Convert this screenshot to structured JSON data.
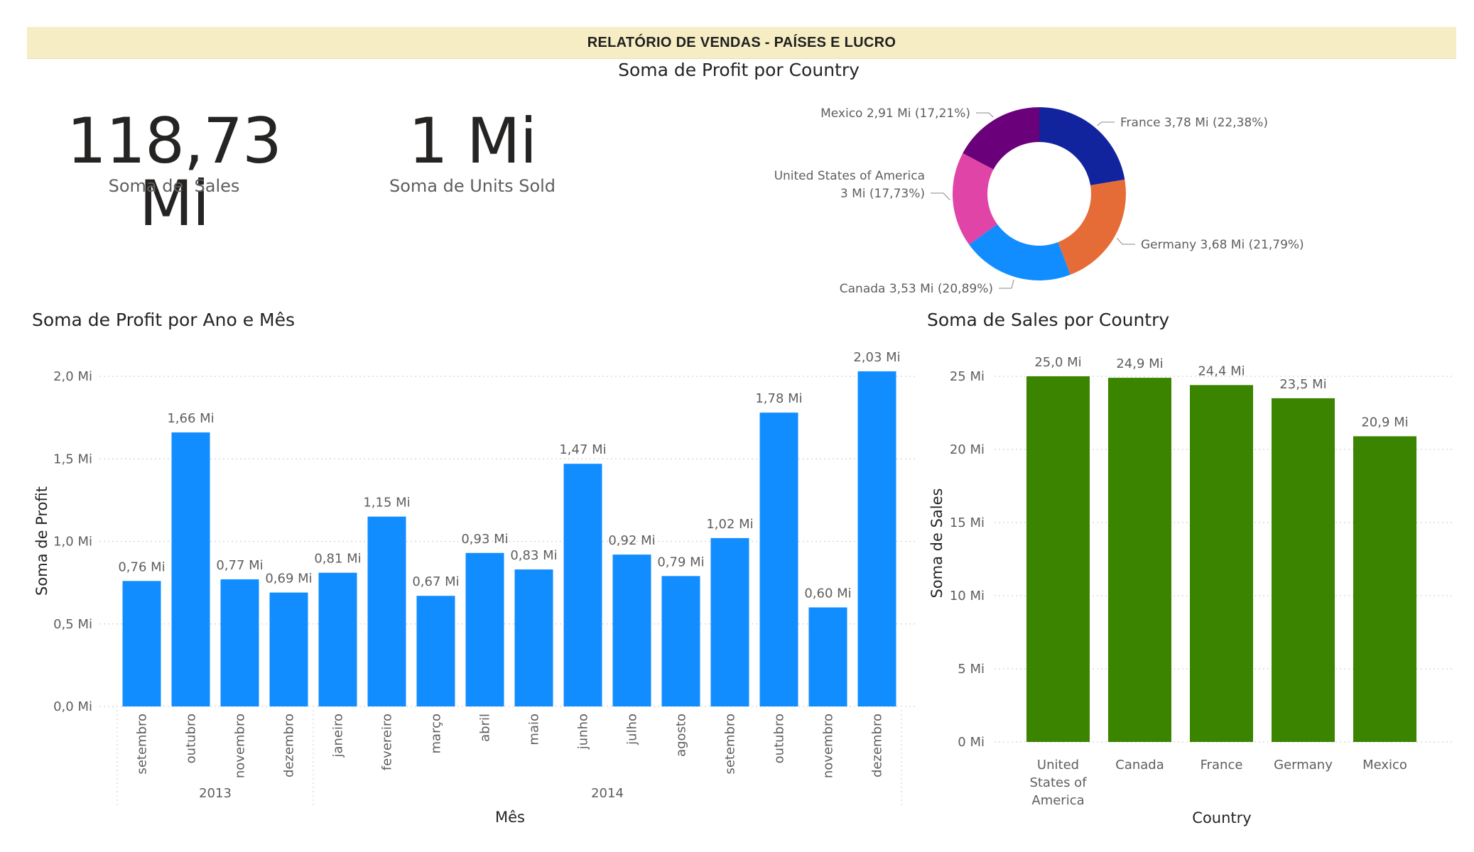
{
  "header": {
    "title": "RELATÓRIO DE VENDAS - PAÍSES E LUCRO"
  },
  "kpis": {
    "sales": {
      "value": "118,73 Mi",
      "label": "Soma de  Sales"
    },
    "units": {
      "value": "1 Mi",
      "label": "Soma de Units Sold"
    }
  },
  "colors": {
    "profit_bar": "#118dff",
    "sales_bar": "#3a8400",
    "France": "#12239e",
    "Germany": "#e66c37",
    "Canada": "#118dff",
    "United States of America": "#e044a7",
    "Mexico": "#6b007b"
  },
  "chart_data": [
    {
      "id": "donut",
      "type": "pie",
      "title": "Soma de Profit por Country",
      "slices": [
        {
          "name": "France",
          "value": 3.78,
          "percent": 22.38,
          "label": "France 3,78 Mi (22,38%)"
        },
        {
          "name": "Germany",
          "value": 3.68,
          "percent": 21.79,
          "label": "Germany 3,68 Mi (21,79%)"
        },
        {
          "name": "Canada",
          "value": 3.53,
          "percent": 20.89,
          "label": "Canada 3,53 Mi (20,89%)"
        },
        {
          "name": "United States of America",
          "value": 3.0,
          "percent": 17.73,
          "label": "United States of America|3 Mi (17,73%)"
        },
        {
          "name": "Mexico",
          "value": 2.91,
          "percent": 17.21,
          "label": "Mexico 2,91 Mi (17,21%)"
        }
      ]
    },
    {
      "id": "profit",
      "type": "bar",
      "title": "Soma de Profit por Ano e Mês",
      "xlabel": "Mês",
      "ylabel": "Soma de Profit",
      "ylim": [
        0,
        2.0
      ],
      "yticks": [
        "0,0 Mi",
        "0,5 Mi",
        "1,0 Mi",
        "1,5 Mi",
        "2,0 Mi"
      ],
      "groups": [
        {
          "label": "2013",
          "count": 4
        },
        {
          "label": "2014",
          "count": 12
        }
      ],
      "categories": [
        "setembro",
        "outubro",
        "novembro",
        "dezembro",
        "janeiro",
        "fevereiro",
        "março",
        "abril",
        "maio",
        "junho",
        "julho",
        "agosto",
        "setembro",
        "outubro",
        "novembro",
        "dezembro"
      ],
      "values": [
        0.76,
        1.66,
        0.77,
        0.69,
        0.81,
        1.15,
        0.67,
        0.93,
        0.83,
        1.47,
        0.92,
        0.79,
        1.02,
        1.78,
        0.6,
        2.03
      ],
      "labels": [
        "0,76 Mi",
        "1,66 Mi",
        "0,77 Mi",
        "0,69 Mi",
        "0,81 Mi",
        "1,15 Mi",
        "0,67 Mi",
        "0,93 Mi",
        "0,83 Mi",
        "1,47 Mi",
        "0,92 Mi",
        "0,79 Mi",
        "1,02 Mi",
        "1,78 Mi",
        "0,60 Mi",
        "2,03 Mi"
      ]
    },
    {
      "id": "sales",
      "type": "bar",
      "title": "Soma de Sales por Country",
      "xlabel": "Country",
      "ylabel": "Soma de Sales",
      "ylim": [
        0,
        25
      ],
      "yticks": [
        "0 Mi",
        "5 Mi",
        "10 Mi",
        "15 Mi",
        "20 Mi",
        "25 Mi"
      ],
      "categories": [
        "United States of America",
        "Canada",
        "France",
        "Germany",
        "Mexico"
      ],
      "category_lines": [
        [
          "United",
          "States of",
          "America"
        ],
        [
          "Canada"
        ],
        [
          "France"
        ],
        [
          "Germany"
        ],
        [
          "Mexico"
        ]
      ],
      "values": [
        25.0,
        24.9,
        24.4,
        23.5,
        20.9
      ],
      "labels": [
        "25,0 Mi",
        "24,9 Mi",
        "24,4 Mi",
        "23,5 Mi",
        "20,9 Mi"
      ]
    }
  ]
}
